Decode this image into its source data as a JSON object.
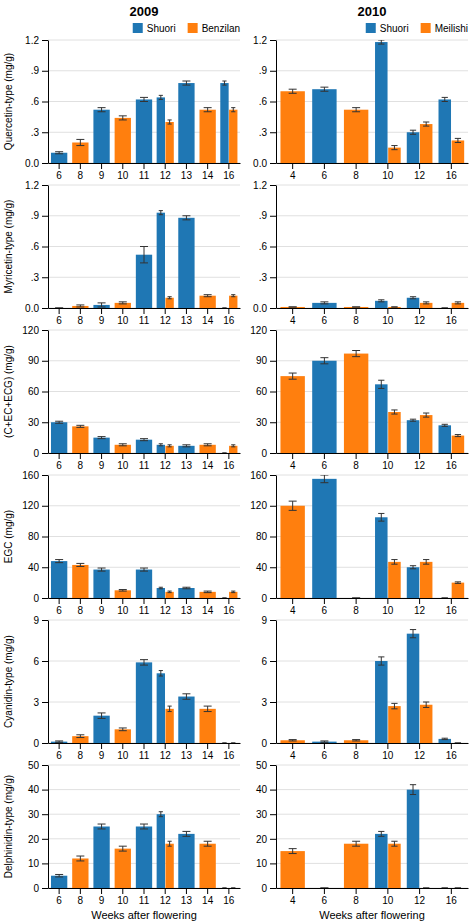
{
  "chart_data": [
    {
      "type": "bar",
      "title": "2009",
      "ylabel": "Quercetin-type (mg/g)",
      "categories": [
        "6",
        "8",
        "9",
        "10",
        "11",
        "12",
        "13",
        "14",
        "16"
      ],
      "series": [
        {
          "name": "Shuori",
          "values": [
            0.1,
            null,
            0.52,
            null,
            0.62,
            0.64,
            0.78,
            null,
            0.78
          ],
          "errors": [
            0.01,
            null,
            0.02,
            null,
            0.02,
            0.02,
            0.02,
            null,
            0.02
          ]
        },
        {
          "name": "Benzilan",
          "values": [
            null,
            0.2,
            null,
            0.44,
            null,
            0.4,
            null,
            0.52,
            0.52
          ],
          "errors": [
            null,
            0.03,
            null,
            0.02,
            null,
            0.02,
            null,
            0.02,
            0.02
          ]
        }
      ],
      "ylim": [
        0.0,
        1.2
      ],
      "yticks": [
        {
          "value": 0.0,
          "label": "0.0"
        },
        {
          "value": 0.3,
          "label": ".3"
        },
        {
          "value": 0.6,
          "label": ".6"
        },
        {
          "value": 0.9,
          "label": ".9"
        },
        1.2
      ],
      "grid": true,
      "legend": "upper right"
    },
    {
      "type": "bar",
      "title": "2010",
      "categories": [
        "4",
        "6",
        "8",
        "10",
        "12",
        "16"
      ],
      "series": [
        {
          "name": "Shuori",
          "values": [
            null,
            0.72,
            null,
            1.18,
            0.3,
            0.62
          ],
          "errors": [
            null,
            0.02,
            null,
            0.02,
            0.02,
            0.02
          ]
        },
        {
          "name": "Meilishi",
          "values": [
            0.7,
            null,
            0.52,
            0.15,
            0.38,
            0.22
          ],
          "errors": [
            0.02,
            null,
            0.02,
            0.02,
            0.02,
            0.02
          ]
        }
      ],
      "ylim": [
        0.0,
        1.2
      ],
      "yticks": [
        {
          "value": 0.0,
          "label": "0.0"
        },
        {
          "value": 0.3,
          "label": ".3"
        },
        {
          "value": 0.6,
          "label": ".6"
        },
        {
          "value": 0.9,
          "label": ".9"
        },
        1.2
      ],
      "grid": true,
      "legend": "upper right"
    },
    {
      "type": "bar",
      "ylabel": "Myricetin-type (mg/g)",
      "categories": [
        "6",
        "8",
        "9",
        "10",
        "11",
        "12",
        "13",
        "14",
        "16"
      ],
      "series": [
        {
          "values": [
            0.0,
            null,
            0.03,
            null,
            0.52,
            0.93,
            0.88,
            null,
            0.0
          ],
          "errors": [
            0.0,
            null,
            0.02,
            null,
            0.08,
            0.02,
            0.02,
            null,
            0.0
          ]
        },
        {
          "values": [
            null,
            0.02,
            null,
            0.05,
            null,
            0.1,
            null,
            0.12,
            0.12
          ],
          "errors": [
            null,
            0.01,
            null,
            0.01,
            null,
            0.01,
            null,
            0.01,
            0.01
          ]
        }
      ],
      "ylim": [
        0.0,
        1.2
      ],
      "yticks": [
        {
          "value": 0.0,
          "label": "0.0"
        },
        {
          "value": 0.3,
          "label": ".3"
        },
        {
          "value": 0.6,
          "label": ".6"
        },
        {
          "value": 0.9,
          "label": ".9"
        },
        1.2
      ],
      "grid": true
    },
    {
      "type": "bar",
      "categories": [
        "4",
        "6",
        "8",
        "10",
        "12",
        "16"
      ],
      "series": [
        {
          "values": [
            null,
            0.05,
            null,
            0.07,
            0.1,
            0.0
          ],
          "errors": [
            null,
            0.01,
            null,
            0.01,
            0.01,
            0.0
          ]
        },
        {
          "values": [
            0.01,
            null,
            0.01,
            0.01,
            0.05,
            0.05
          ],
          "errors": [
            0.0,
            null,
            0.0,
            0.0,
            0.01,
            0.01
          ]
        }
      ],
      "ylim": [
        0.0,
        1.2
      ],
      "yticks": [
        {
          "value": 0.0,
          "label": "0.0"
        },
        {
          "value": 0.3,
          "label": ".3"
        },
        {
          "value": 0.6,
          "label": ".6"
        },
        {
          "value": 0.9,
          "label": ".9"
        },
        1.2
      ],
      "grid": true
    },
    {
      "type": "bar",
      "ylabel": "(C+EC+ECG) (mg/g)",
      "categories": [
        "6",
        "8",
        "9",
        "10",
        "11",
        "12",
        "13",
        "14",
        "16"
      ],
      "series": [
        {
          "values": [
            30,
            null,
            15,
            null,
            13,
            8,
            7,
            null,
            0
          ],
          "errors": [
            1,
            null,
            1,
            null,
            1,
            1,
            1,
            null,
            0
          ]
        },
        {
          "values": [
            null,
            26,
            null,
            8,
            null,
            7,
            null,
            8,
            7
          ],
          "errors": [
            null,
            1,
            null,
            1,
            null,
            1,
            null,
            1,
            1
          ]
        }
      ],
      "ylim": [
        0,
        120
      ],
      "yticks": [
        0,
        30,
        60,
        90,
        120
      ],
      "grid": true
    },
    {
      "type": "bar",
      "categories": [
        "4",
        "6",
        "8",
        "10",
        "12",
        "16"
      ],
      "series": [
        {
          "values": [
            null,
            90,
            null,
            67,
            32,
            27
          ],
          "errors": [
            null,
            3,
            null,
            4,
            1,
            1
          ]
        },
        {
          "values": [
            75,
            null,
            97,
            40,
            37,
            17
          ],
          "errors": [
            3,
            null,
            3,
            2,
            2,
            1
          ]
        }
      ],
      "ylim": [
        0,
        120
      ],
      "yticks": [
        0,
        30,
        60,
        90,
        120
      ],
      "grid": true
    },
    {
      "type": "bar",
      "ylabel": "EGC (mg/g)",
      "categories": [
        "6",
        "8",
        "9",
        "10",
        "11",
        "12",
        "13",
        "14",
        "16"
      ],
      "series": [
        {
          "values": [
            48,
            null,
            37,
            null,
            37,
            13,
            13,
            null,
            0
          ],
          "errors": [
            2,
            null,
            2,
            null,
            2,
            1,
            1,
            null,
            0
          ]
        },
        {
          "values": [
            null,
            43,
            null,
            10,
            null,
            8,
            null,
            8,
            8
          ],
          "errors": [
            null,
            2,
            null,
            1,
            null,
            1,
            null,
            1,
            1
          ]
        }
      ],
      "ylim": [
        0,
        160
      ],
      "yticks": [
        0,
        40,
        80,
        120,
        160
      ],
      "grid": true
    },
    {
      "type": "bar",
      "categories": [
        "4",
        "6",
        "8",
        "10",
        "12",
        "16"
      ],
      "series": [
        {
          "values": [
            null,
            155,
            null,
            105,
            40,
            0
          ],
          "errors": [
            null,
            5,
            null,
            5,
            2,
            0
          ]
        },
        {
          "values": [
            120,
            null,
            0,
            47,
            47,
            20
          ],
          "errors": [
            6,
            null,
            0,
            3,
            3,
            1
          ]
        }
      ],
      "ylim": [
        0,
        160
      ],
      "yticks": [
        0,
        40,
        80,
        120,
        160
      ],
      "grid": true
    },
    {
      "type": "bar",
      "ylabel": "Cyanidin-type (mg/g)",
      "categories": [
        "6",
        "8",
        "9",
        "10",
        "11",
        "12",
        "13",
        "14",
        "16"
      ],
      "series": [
        {
          "values": [
            0.1,
            null,
            2.0,
            null,
            5.9,
            5.1,
            3.4,
            null,
            0.0
          ],
          "errors": [
            0.05,
            null,
            0.2,
            null,
            0.2,
            0.2,
            0.2,
            null,
            0.0
          ]
        },
        {
          "values": [
            null,
            0.5,
            null,
            1.0,
            null,
            2.5,
            null,
            2.5,
            0.0
          ],
          "errors": [
            null,
            0.1,
            null,
            0.1,
            null,
            0.2,
            null,
            0.2,
            0.0
          ]
        }
      ],
      "ylim": [
        0,
        9
      ],
      "yticks": [
        0,
        3,
        6,
        9
      ],
      "grid": true
    },
    {
      "type": "bar",
      "categories": [
        "4",
        "6",
        "8",
        "10",
        "12",
        "16"
      ],
      "series": [
        {
          "values": [
            null,
            0.1,
            null,
            6.0,
            8.0,
            0.3
          ],
          "errors": [
            null,
            0.05,
            null,
            0.3,
            0.3,
            0.05
          ]
        },
        {
          "values": [
            0.2,
            null,
            0.2,
            2.7,
            2.8,
            0.0
          ],
          "errors": [
            0.05,
            null,
            0.05,
            0.2,
            0.2,
            0.0
          ]
        }
      ],
      "ylim": [
        0,
        9
      ],
      "yticks": [
        0,
        3,
        6,
        9
      ],
      "grid": true
    },
    {
      "type": "bar",
      "ylabel": "Delphinidin-type (mg/g)",
      "xlabel": "Weeks after flowering",
      "categories": [
        "6",
        "8",
        "9",
        "10",
        "11",
        "12",
        "13",
        "14",
        "16"
      ],
      "series": [
        {
          "values": [
            5,
            null,
            25,
            null,
            25,
            30,
            22,
            null,
            0
          ],
          "errors": [
            0.5,
            null,
            1,
            null,
            1,
            1,
            1,
            null,
            0
          ]
        },
        {
          "values": [
            null,
            12,
            null,
            16,
            null,
            18,
            null,
            18,
            0
          ],
          "errors": [
            null,
            1,
            null,
            1,
            null,
            1,
            null,
            1,
            0
          ]
        }
      ],
      "ylim": [
        0,
        50
      ],
      "yticks": [
        0,
        10,
        20,
        30,
        40,
        50
      ],
      "grid": true
    },
    {
      "type": "bar",
      "xlabel": "Weeks after flowering",
      "categories": [
        "4",
        "6",
        "8",
        "10",
        "12",
        "16"
      ],
      "series": [
        {
          "values": [
            null,
            0,
            null,
            22,
            40,
            0
          ],
          "errors": [
            null,
            0,
            null,
            1,
            2,
            0
          ]
        },
        {
          "values": [
            15,
            null,
            18,
            18,
            0,
            0
          ],
          "errors": [
            1,
            null,
            1,
            1,
            0,
            0
          ]
        }
      ],
      "ylim": [
        0,
        50
      ],
      "yticks": [
        0,
        10,
        20,
        30,
        40,
        50
      ],
      "grid": true
    }
  ]
}
